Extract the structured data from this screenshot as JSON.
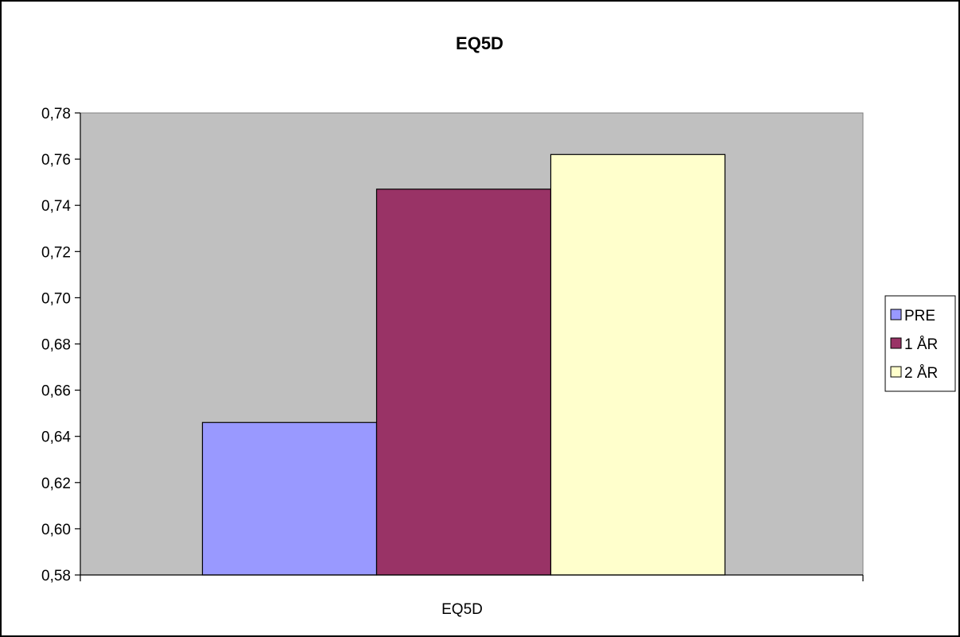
{
  "chart_data": {
    "type": "bar",
    "title": "EQ5D",
    "xlabel": "",
    "ylabel": "",
    "categories": [
      "EQ5D"
    ],
    "series": [
      {
        "name": "PRE",
        "values": [
          0.646
        ],
        "color": "#9999ff"
      },
      {
        "name": "1 ÅR",
        "values": [
          0.747
        ],
        "color": "#993366"
      },
      {
        "name": "2 ÅR",
        "values": [
          0.762
        ],
        "color": "#ffffcc"
      }
    ],
    "ylim": [
      0.58,
      0.78
    ],
    "yticks": [
      "0,58",
      "0,60",
      "0,62",
      "0,64",
      "0,66",
      "0,68",
      "0,70",
      "0,72",
      "0,74",
      "0,76",
      "0,78"
    ],
    "plot_background": "#c0c0c0",
    "grid": false,
    "legend_position": "right"
  }
}
